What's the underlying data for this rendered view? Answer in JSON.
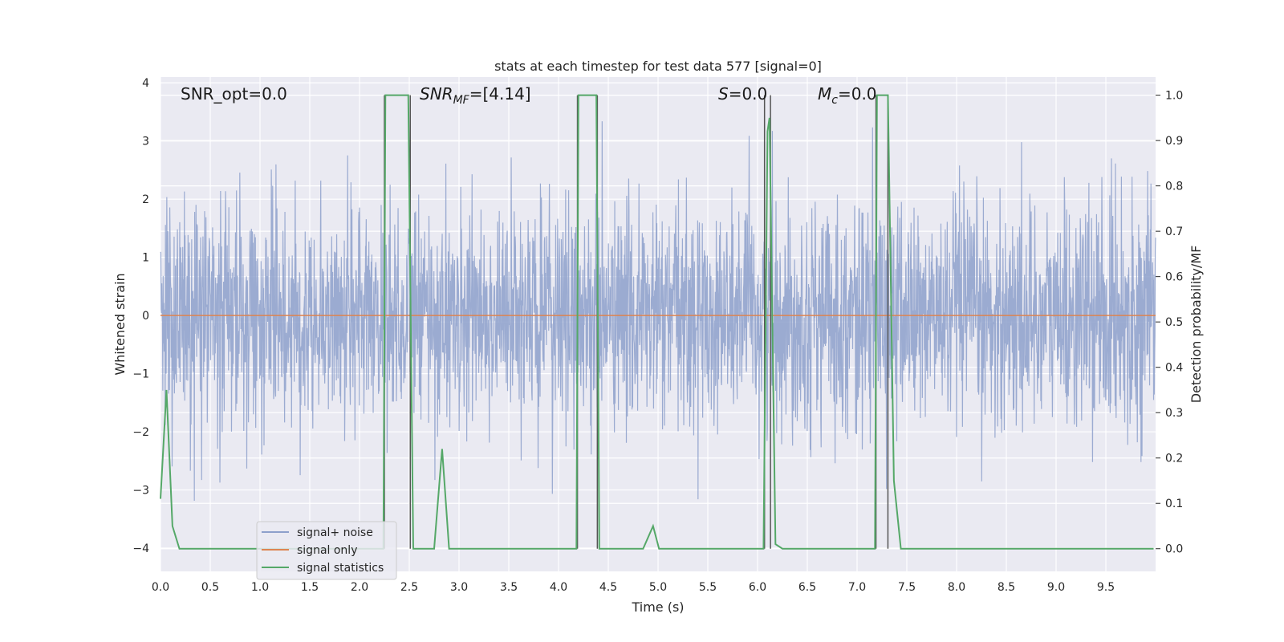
{
  "chart_data": {
    "type": "line",
    "title": "stats at each timestep for test data 577 [signal=0]",
    "xlabel": "Time (s)",
    "ylabel": "Whitened strain",
    "y2label": "Detection probability/MF",
    "xlim": [
      0.0,
      10.0
    ],
    "ylim": [
      -4.4,
      4.1
    ],
    "y2lim": [
      -0.05,
      1.04
    ],
    "x_ticks": [
      "0.0",
      "0.5",
      "1.0",
      "1.5",
      "2.0",
      "2.5",
      "3.0",
      "3.5",
      "4.0",
      "4.5",
      "5.0",
      "5.5",
      "6.0",
      "6.5",
      "7.0",
      "7.5",
      "8.0",
      "8.5",
      "9.0",
      "9.5"
    ],
    "y_ticks": [
      "−4",
      "−3",
      "−2",
      "−1",
      "0",
      "1",
      "2",
      "3",
      "4"
    ],
    "y2_ticks": [
      "0.0",
      "0.1",
      "0.2",
      "0.3",
      "0.4",
      "0.5",
      "0.6",
      "0.7",
      "0.8",
      "0.9",
      "1.0"
    ],
    "grid": true,
    "legend_position": "lower-left",
    "annotations": [
      {
        "id": "snr-opt",
        "text": "SNR_opt=0.0"
      },
      {
        "id": "snr-mf",
        "text": "SNR",
        "sub": "MF",
        "suffix": "=[4.14]"
      },
      {
        "id": "s",
        "text": "S",
        "suffix": "=0.0"
      },
      {
        "id": "mc",
        "text": "M",
        "sub": "c",
        "suffix": "=0.0"
      }
    ],
    "vlines_x": [
      2.25,
      2.51,
      4.19,
      4.39,
      6.07,
      6.13,
      7.19,
      7.31
    ],
    "series": [
      {
        "name": "signal+ noise",
        "color": "#8da0cb",
        "kind": "noise",
        "typical_abs": 1.5,
        "max_abs": 3.5
      },
      {
        "name": "signal only",
        "color": "#dd8452",
        "kind": "line",
        "x": [
          0.0,
          10.0
        ],
        "y": [
          0.0,
          0.0
        ]
      },
      {
        "name": "signal statistics",
        "color": "#55a868",
        "kind": "line",
        "axis": "right",
        "x": [
          0.0,
          0.06,
          0.12,
          0.19,
          0.25,
          2.24,
          2.26,
          2.31,
          2.49,
          2.54,
          2.63,
          2.75,
          2.83,
          2.9,
          4.18,
          4.2,
          4.24,
          4.38,
          4.41,
          4.85,
          4.95,
          5.01,
          6.06,
          6.1,
          6.12,
          6.18,
          6.25,
          7.18,
          7.2,
          7.25,
          7.31,
          7.37,
          7.44,
          9.98
        ],
        "y": [
          0.11,
          0.35,
          0.05,
          0.0,
          0.0,
          0.0,
          1.0,
          1.0,
          1.0,
          0.0,
          0.0,
          0.0,
          0.22,
          0.0,
          0.0,
          1.0,
          1.0,
          1.0,
          0.0,
          0.0,
          0.05,
          0.0,
          0.0,
          0.92,
          0.95,
          0.01,
          0.0,
          0.0,
          1.0,
          1.0,
          1.0,
          0.15,
          0.0,
          0.0
        ]
      }
    ]
  }
}
